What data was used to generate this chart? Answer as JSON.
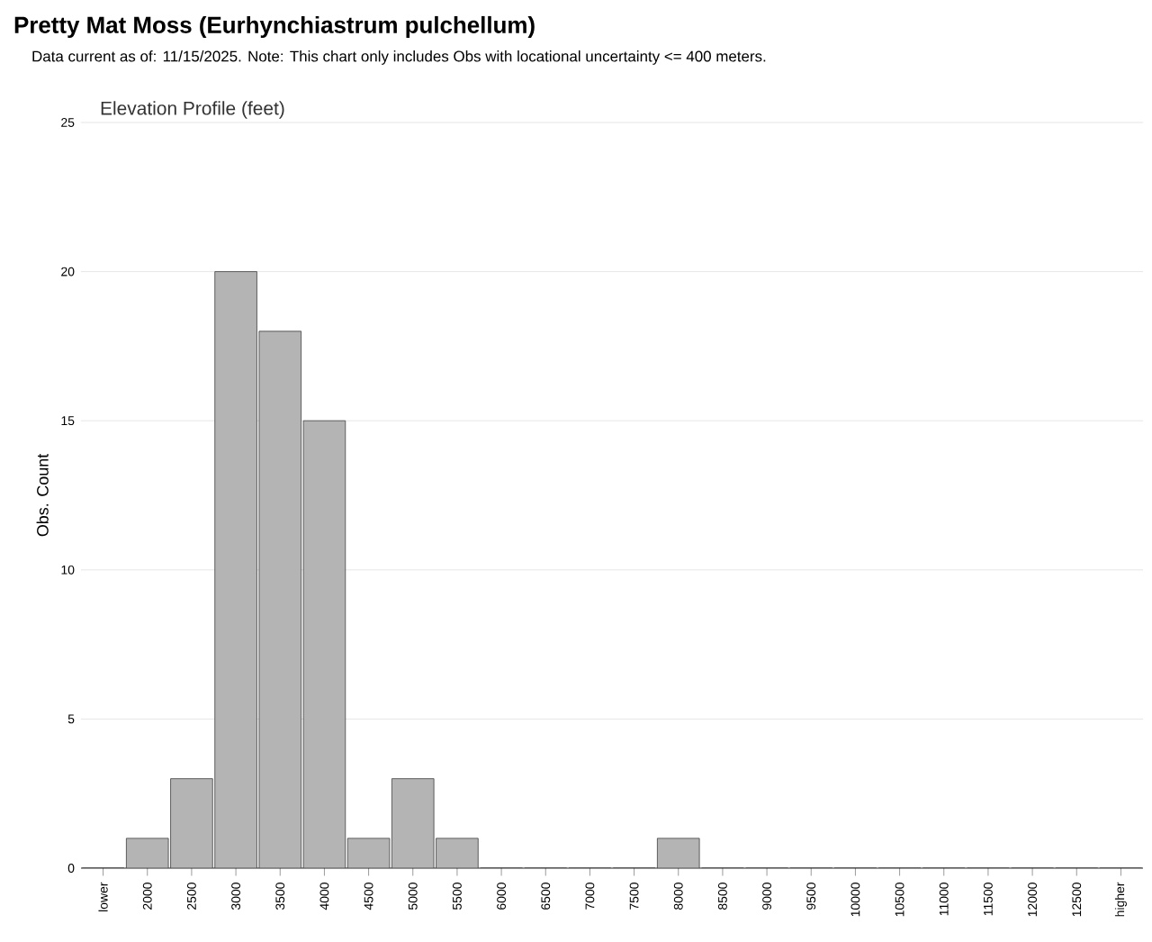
{
  "chart_data": {
    "type": "bar",
    "title": "Pretty Mat Moss   (Eurhynchiastrum pulchellum)",
    "subtitle": "Data current as of: 11/15/2025.    Note: This chart only includes Obs with locational uncertainty <= 400 meters.",
    "annotations": [
      "Elevation Profile (feet)"
    ],
    "ylabel": "Obs. Count",
    "categories": [
      "lower",
      "2000",
      "2500",
      "3000",
      "3500",
      "4000",
      "4500",
      "5000",
      "5500",
      "6000",
      "6500",
      "7000",
      "7500",
      "8000",
      "8500",
      "9000",
      "9500",
      "10000",
      "10500",
      "11000",
      "11500",
      "12000",
      "12500",
      "higher"
    ],
    "values": [
      0,
      1,
      3,
      20,
      18,
      15,
      1,
      3,
      1,
      0,
      0,
      0,
      0,
      1,
      0,
      0,
      0,
      0,
      0,
      0,
      0,
      0,
      0,
      0
    ],
    "color": "#b4b4b4",
    "ylim": [
      0,
      25
    ],
    "yticks": [
      0,
      5,
      10,
      15,
      20,
      25
    ],
    "grid": "y"
  }
}
